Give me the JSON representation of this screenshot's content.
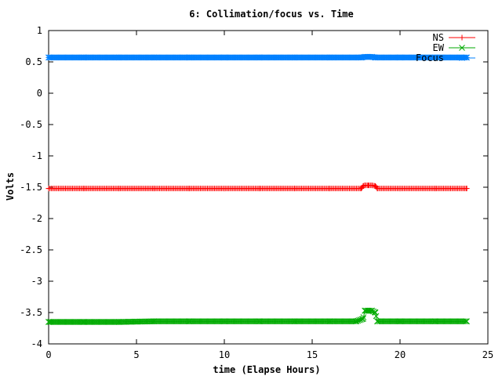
{
  "chart_data": {
    "type": "line",
    "title": "6: Collimation/focus vs. Time",
    "xlabel": "time (Elapse Hours)",
    "ylabel": "Volts",
    "xlim": [
      0,
      25
    ],
    "ylim": [
      -4,
      1
    ],
    "xticks": [
      0,
      5,
      10,
      15,
      20,
      25
    ],
    "yticks": [
      -4,
      -3.5,
      -3,
      -2.5,
      -2,
      -1.5,
      -1,
      -0.5,
      0,
      0.5,
      1
    ],
    "xtick_labels": [
      "0",
      "5",
      "10",
      "15",
      "20",
      "25"
    ],
    "ytick_labels": [
      "-4",
      "-3.5",
      "-3",
      "-2.5",
      "-2",
      "-1.5",
      "-1",
      "-0.5",
      "0",
      "0.5",
      "1"
    ],
    "grid": false,
    "legend_position": "top-right",
    "series": [
      {
        "name": "NS",
        "color": "#ff0000",
        "marker": "plus",
        "x": [
          0,
          2,
          4,
          6,
          8,
          10,
          12,
          14,
          16,
          17.8,
          17.9,
          18.0,
          18.2,
          18.4,
          18.6,
          18.7,
          20,
          22,
          23.8
        ],
        "y": [
          -1.52,
          -1.52,
          -1.52,
          -1.52,
          -1.52,
          -1.52,
          -1.52,
          -1.52,
          -1.52,
          -1.52,
          -1.48,
          -1.47,
          -1.47,
          -1.47,
          -1.48,
          -1.52,
          -1.52,
          -1.52,
          -1.52
        ]
      },
      {
        "name": "EW",
        "color": "#00aa00",
        "marker": "cross",
        "x": [
          0,
          2,
          4,
          6,
          8,
          10,
          12,
          14,
          16,
          17.5,
          17.9,
          18.0,
          18.2,
          18.4,
          18.6,
          18.7,
          20,
          22,
          23.8
        ],
        "y": [
          -3.65,
          -3.65,
          -3.65,
          -3.64,
          -3.64,
          -3.64,
          -3.64,
          -3.64,
          -3.64,
          -3.64,
          -3.6,
          -3.47,
          -3.47,
          -3.47,
          -3.5,
          -3.64,
          -3.64,
          -3.64,
          -3.64
        ]
      },
      {
        "name": "Focus",
        "color": "#0080ff",
        "marker": "star",
        "x": [
          0,
          2,
          4,
          6,
          8,
          10,
          12,
          14,
          16,
          17.8,
          18.0,
          18.2,
          18.4,
          18.6,
          20,
          22,
          23.8
        ],
        "y": [
          0.57,
          0.57,
          0.57,
          0.57,
          0.57,
          0.57,
          0.57,
          0.57,
          0.57,
          0.57,
          0.58,
          0.58,
          0.58,
          0.57,
          0.57,
          0.57,
          0.57
        ]
      }
    ]
  }
}
